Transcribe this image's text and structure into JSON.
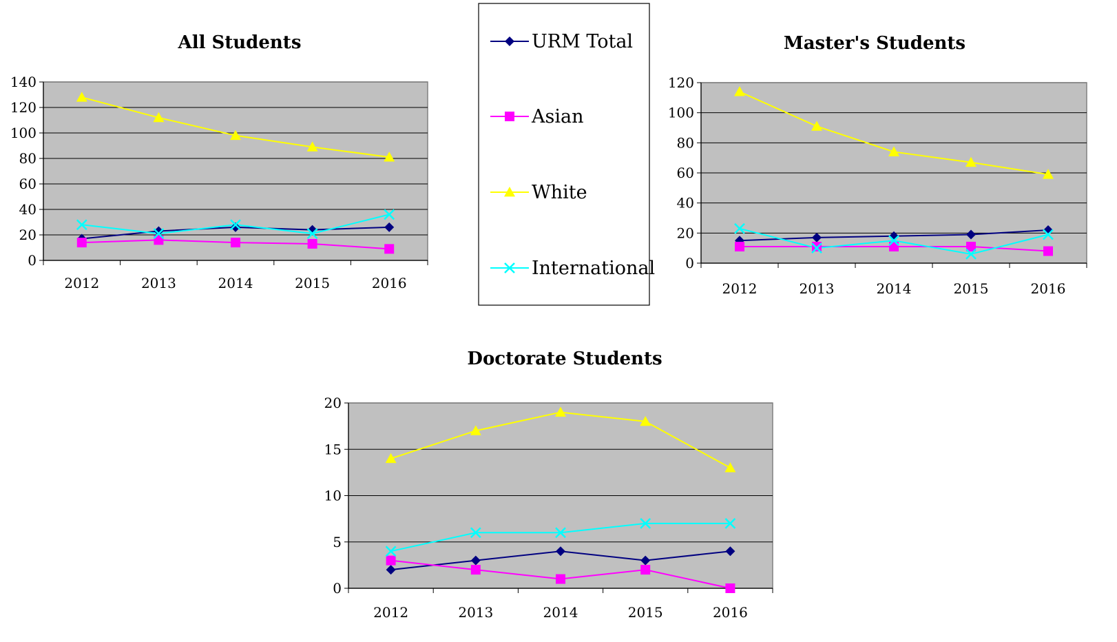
{
  "legend": {
    "series": [
      {
        "key": "urm",
        "label": "URM Total",
        "color": "#000080",
        "marker": "diamond"
      },
      {
        "key": "asian",
        "label": "Asian",
        "color": "#FF00FF",
        "marker": "square"
      },
      {
        "key": "white",
        "label": "White",
        "color": "#FFFF00",
        "marker": "triangle"
      },
      {
        "key": "intl",
        "label": "International",
        "color": "#00FFFF",
        "marker": "x"
      }
    ]
  },
  "chart_data": [
    {
      "type": "line",
      "title": "All Students",
      "categories": [
        "2012",
        "2013",
        "2014",
        "2015",
        "2016"
      ],
      "ylim": [
        0,
        140
      ],
      "yticks": [
        0,
        20,
        40,
        60,
        80,
        100,
        120,
        140
      ],
      "grid": true,
      "series": [
        {
          "name": "URM Total",
          "values": [
            17,
            23,
            26,
            24,
            26
          ]
        },
        {
          "name": "Asian",
          "values": [
            14,
            16,
            14,
            13,
            9
          ]
        },
        {
          "name": "White",
          "values": [
            128,
            112,
            98,
            89,
            81
          ]
        },
        {
          "name": "International",
          "values": [
            28,
            21,
            28,
            21,
            36
          ]
        }
      ]
    },
    {
      "type": "line",
      "title": "Master's Students",
      "categories": [
        "2012",
        "2013",
        "2014",
        "2015",
        "2016"
      ],
      "ylim": [
        0,
        120
      ],
      "yticks": [
        0,
        20,
        40,
        60,
        80,
        100,
        120
      ],
      "grid": true,
      "series": [
        {
          "name": "URM Total",
          "values": [
            15,
            17,
            18,
            19,
            22
          ]
        },
        {
          "name": "Asian",
          "values": [
            11,
            11,
            11,
            11,
            8
          ]
        },
        {
          "name": "White",
          "values": [
            114,
            91,
            74,
            67,
            59
          ]
        },
        {
          "name": "International",
          "values": [
            23,
            10,
            15,
            6,
            19
          ]
        }
      ]
    },
    {
      "type": "line",
      "title": "Doctorate Students",
      "categories": [
        "2012",
        "2013",
        "2014",
        "2015",
        "2016"
      ],
      "ylim": [
        0,
        20
      ],
      "yticks": [
        0,
        5,
        10,
        15,
        20
      ],
      "grid": true,
      "series": [
        {
          "name": "URM Total",
          "values": [
            2,
            3,
            4,
            3,
            4
          ]
        },
        {
          "name": "Asian",
          "values": [
            3,
            2,
            1,
            2,
            0
          ]
        },
        {
          "name": "White",
          "values": [
            14,
            17,
            19,
            18,
            13
          ]
        },
        {
          "name": "International",
          "values": [
            4,
            6,
            6,
            7,
            7
          ]
        }
      ]
    }
  ]
}
